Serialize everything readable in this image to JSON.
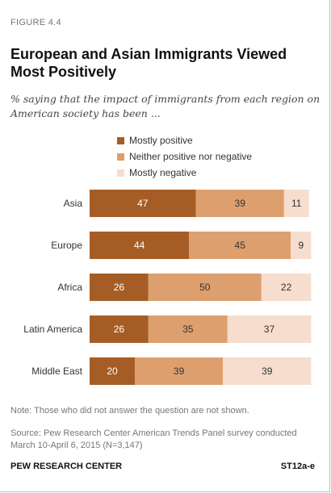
{
  "figure_label": "FIGURE 4.4",
  "chart_data": {
    "type": "bar",
    "orientation": "horizontal",
    "stacked": true,
    "title": "European and Asian Immigrants Viewed Most Positively",
    "subtitle": "% saying that the impact of immigrants from each region on American society has been ...",
    "categories": [
      "Asia",
      "Europe",
      "Africa",
      "Latin America",
      "Middle East"
    ],
    "series": [
      {
        "name": "Mostly positive",
        "color": "#a65d25",
        "label_color": "#ffffff",
        "values": [
          47,
          44,
          26,
          26,
          20
        ]
      },
      {
        "name": "Neither positive nor negative",
        "color": "#dd9f6e",
        "label_color": "#333333",
        "values": [
          39,
          45,
          50,
          35,
          39
        ]
      },
      {
        "name": "Mostly negative",
        "color": "#f6ddcd",
        "label_color": "#333333",
        "values": [
          11,
          9,
          22,
          37,
          39
        ]
      }
    ],
    "xlim": [
      0,
      100
    ],
    "grid": false,
    "legend_position": "top"
  },
  "note": "Note: Those who did not answer the question are not shown.",
  "source": "Source: Pew Research Center American Trends Panel survey conducted March 10-April 6, 2015 (N=3,147)",
  "footer": {
    "org": "PEW RESEARCH CENTER",
    "code": "ST12a-e"
  }
}
